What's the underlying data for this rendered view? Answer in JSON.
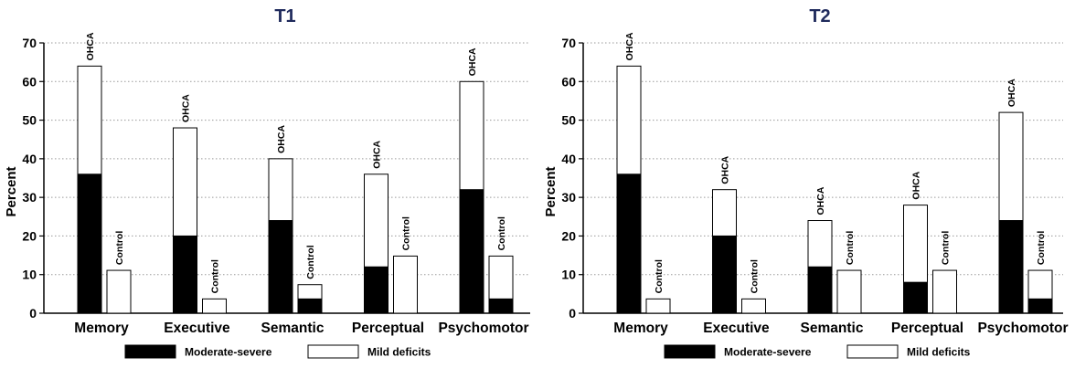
{
  "chart_data": [
    {
      "type": "bar",
      "stacked": true,
      "title": "T1",
      "ylabel": "Percent",
      "xlabel": "",
      "ylim": [
        0,
        70
      ],
      "yticks": [
        0,
        10,
        20,
        30,
        40,
        50,
        60,
        70
      ],
      "grid": "horizontal dotted",
      "categories": [
        "Memory",
        "Executive",
        "Semantic",
        "Perceptual",
        "Psychomotor"
      ],
      "groups": [
        "OHCA",
        "Control"
      ],
      "series": [
        {
          "name": "Moderate-severe",
          "color": "#000000",
          "values": {
            "OHCA": [
              36,
              20,
              24,
              12,
              32
            ],
            "Control": [
              0,
              0,
              3.7,
              0,
              3.7
            ]
          }
        },
        {
          "name": "Mild deficits",
          "color": "#ffffff",
          "values": {
            "OHCA": [
              28,
              28,
              16,
              24,
              28
            ],
            "Control": [
              11.1,
              3.7,
              3.7,
              14.8,
              11.1
            ]
          }
        }
      ],
      "legend": "bottom"
    },
    {
      "type": "bar",
      "stacked": true,
      "title": "T2",
      "ylabel": "Percent",
      "xlabel": "",
      "ylim": [
        0,
        70
      ],
      "yticks": [
        0,
        10,
        20,
        30,
        40,
        50,
        60,
        70
      ],
      "grid": "horizontal dotted",
      "categories": [
        "Memory",
        "Executive",
        "Semantic",
        "Perceptual",
        "Psychomotor"
      ],
      "groups": [
        "OHCA",
        "Control"
      ],
      "series": [
        {
          "name": "Moderate-severe",
          "color": "#000000",
          "values": {
            "OHCA": [
              36,
              20,
              12,
              8,
              24
            ],
            "Control": [
              0,
              0,
              0,
              0,
              3.7
            ]
          }
        },
        {
          "name": "Mild deficits",
          "color": "#ffffff",
          "values": {
            "OHCA": [
              28,
              12,
              12,
              20,
              28
            ],
            "Control": [
              3.7,
              3.7,
              11.1,
              11.1,
              7.4
            ]
          }
        }
      ],
      "legend": "bottom"
    }
  ]
}
